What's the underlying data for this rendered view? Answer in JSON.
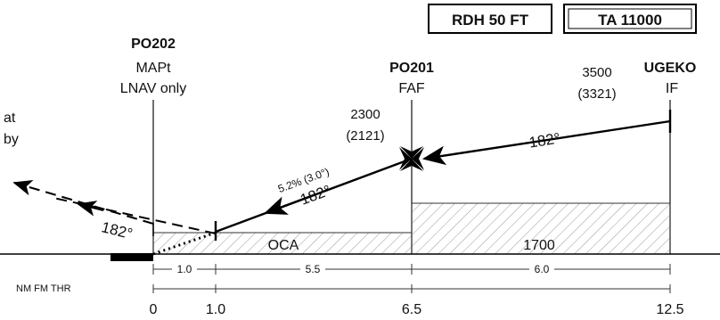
{
  "header": {
    "rdh": "RDH 50 FT",
    "ta": "TA 11000"
  },
  "waypoints": {
    "po202": {
      "name": "PO202",
      "role": "MAPt",
      "note": "LNAV only"
    },
    "po201": {
      "name": "PO201",
      "role": "FAF",
      "altitude": "2300",
      "height": "(2121)"
    },
    "ugeko": {
      "name": "UGEKO",
      "role": "IF",
      "altitude": "3500",
      "height": "(3321)"
    }
  },
  "missed_approach_text": {
    "line1": "at",
    "line2": "by"
  },
  "tracks": {
    "inbound_if_faf": "182°",
    "inbound_final": "182°",
    "missed_approach": "182°"
  },
  "final_gradient": "5.2% (3.0°)",
  "minimums": {
    "oca_label": "OCA",
    "segment_altitude": "1700"
  },
  "distance_scale": {
    "label": "NM FM THR",
    "ticks": [
      "0",
      "1.0",
      "6.5",
      "12.5"
    ],
    "segments": [
      "1.0",
      "5.5",
      "6.0"
    ]
  },
  "colors": {
    "ink": "#000000",
    "hatch": "#9a9a9a",
    "background": "#ffffff"
  }
}
